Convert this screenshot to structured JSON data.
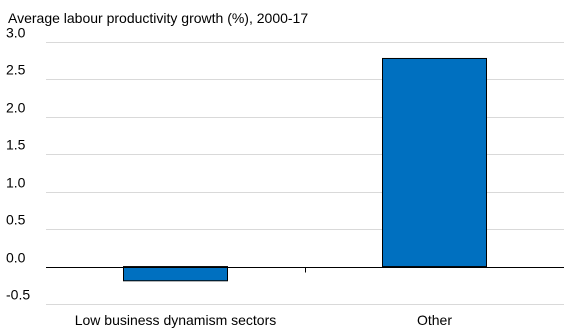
{
  "chart_data": {
    "type": "bar",
    "title": "Average labour productivity growth (%), 2000-17",
    "xlabel": "",
    "ylabel": "",
    "categories": [
      "Low business dynamism sectors",
      "Other"
    ],
    "values": [
      -0.19,
      2.78
    ],
    "ylim": [
      -0.5,
      3.0
    ],
    "yticks": [
      "3.0",
      "2.5",
      "2.0",
      "1.5",
      "1.0",
      "0.5",
      "0.0",
      "-0.5"
    ],
    "ytick_values": [
      3.0,
      2.5,
      2.0,
      1.5,
      1.0,
      0.5,
      0.0,
      -0.5
    ],
    "grid": true,
    "legend": "none",
    "bar_color": "#0070c0"
  }
}
